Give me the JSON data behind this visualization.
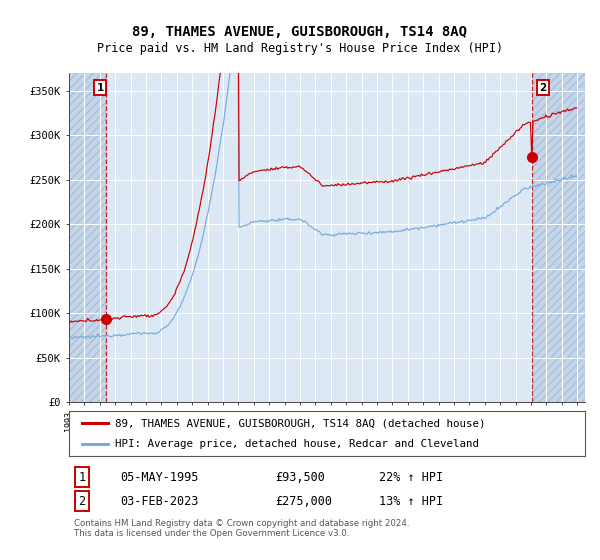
{
  "title": "89, THAMES AVENUE, GUISBOROUGH, TS14 8AQ",
  "subtitle": "Price paid vs. HM Land Registry's House Price Index (HPI)",
  "title_fontsize": 10,
  "subtitle_fontsize": 8.5,
  "bg_color": "#dce9f5",
  "grid_color": "#ffffff",
  "property_color": "#cc0000",
  "hpi_color": "#7aaadd",
  "purchase1_x": 1995.375,
  "purchase1_price": 93500,
  "purchase2_x": 2023.083,
  "purchase2_price": 275000,
  "xlim_start": 1993.0,
  "xlim_end": 2026.5,
  "ylim_min": 0,
  "ylim_max": 370000,
  "legend_label1": "89, THAMES AVENUE, GUISBOROUGH, TS14 8AQ (detached house)",
  "legend_label2": "HPI: Average price, detached house, Redcar and Cleveland",
  "table_row1": [
    "1",
    "05-MAY-1995",
    "£93,500",
    "22% ↑ HPI"
  ],
  "table_row2": [
    "2",
    "03-FEB-2023",
    "£275,000",
    "13% ↑ HPI"
  ],
  "footer": "Contains HM Land Registry data © Crown copyright and database right 2024.\nThis data is licensed under the Open Government Licence v3.0."
}
